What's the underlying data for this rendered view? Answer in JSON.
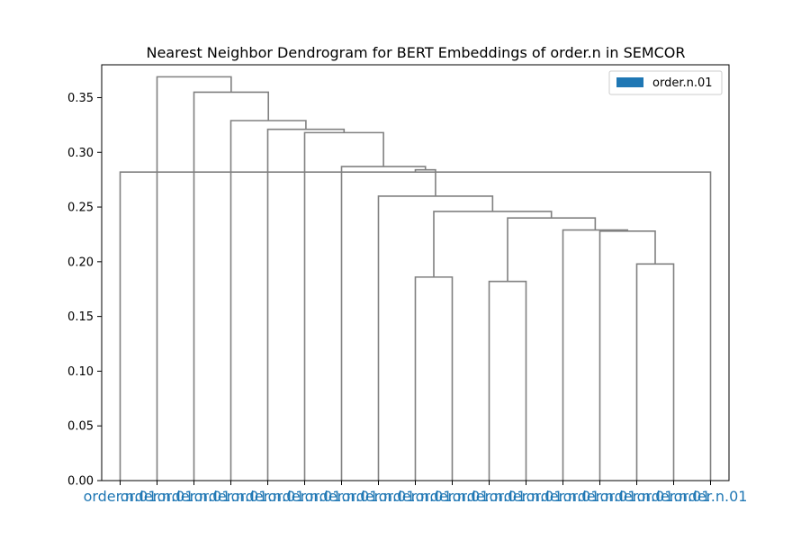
{
  "chart_data": {
    "type": "dendrogram",
    "title": "Nearest Neighbor Dendrogram for BERT Embeddings of order.n in SEMCOR",
    "xlabel": "",
    "ylabel": "",
    "ylim": [
      0,
      0.38
    ],
    "yticks": [
      "0.00",
      "0.05",
      "0.10",
      "0.15",
      "0.20",
      "0.25",
      "0.30",
      "0.35"
    ],
    "leaf_labels": [
      "order.n.01",
      "order.n.01",
      "order.n.01",
      "order.n.01",
      "order.n.01",
      "order.n.01",
      "order.n.01",
      "order.n.01",
      "order.n.01",
      "order.n.01",
      "order.n.01",
      "order.n.01",
      "order.n.01",
      "order.n.01",
      "order.n.01",
      "order.n.01",
      "order.n.01"
    ],
    "leaf_label_color": "#1f77b4",
    "link_color": "#808080",
    "merges": [
      {
        "left": 8,
        "right": 9,
        "height": 0.186
      },
      {
        "left": 10,
        "right": 11,
        "height": 0.182
      },
      {
        "left": 14,
        "right": 15,
        "height": 0.198
      },
      {
        "left": 13,
        "right": 19,
        "height": 0.228
      },
      {
        "left": 12,
        "right": 20,
        "height": 0.229
      },
      {
        "left": 18,
        "right": 21,
        "height": 0.24
      },
      {
        "left": 17,
        "right": 22,
        "height": 0.246
      },
      {
        "left": 7,
        "right": 23,
        "height": 0.26
      },
      {
        "left": 16,
        "right": 0,
        "height": 0.282
      },
      {
        "left": 24,
        "right": 25,
        "height": 0.284
      },
      {
        "left": 6,
        "right": 26,
        "height": 0.287
      },
      {
        "left": 5,
        "right": 27,
        "height": 0.318
      },
      {
        "left": 4,
        "right": 28,
        "height": 0.321
      },
      {
        "left": 3,
        "right": 29,
        "height": 0.329
      },
      {
        "left": 2,
        "right": 30,
        "height": 0.355
      },
      {
        "left": 1,
        "right": 31,
        "height": 0.369
      }
    ],
    "leaf_index_map": [
      16,
      1,
      2,
      3,
      4,
      5,
      6,
      7,
      8,
      9,
      10,
      11,
      12,
      13,
      14,
      15,
      16
    ],
    "legend": {
      "entries": [
        {
          "name": "order.n.01",
          "color": "#1f77b4"
        }
      ],
      "placement": "top-right"
    },
    "grid": false
  }
}
